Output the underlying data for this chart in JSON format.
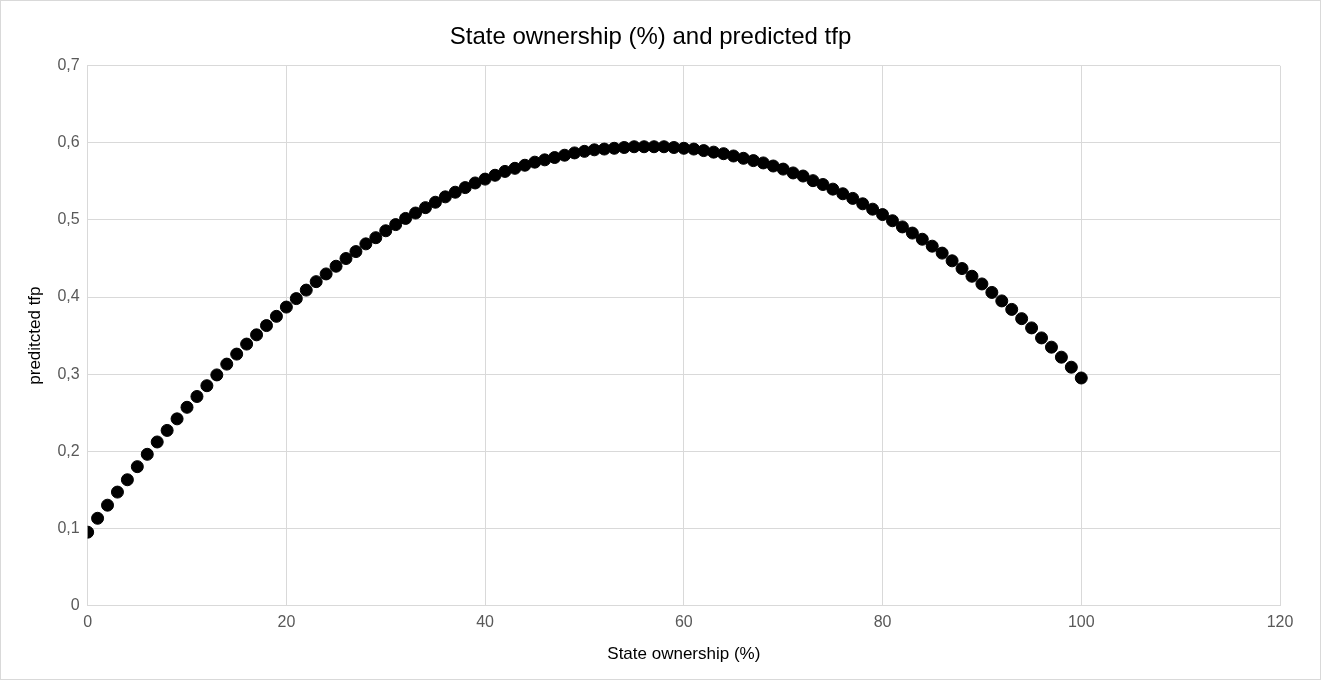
{
  "chart_data": {
    "type": "scatter",
    "title": "State ownership (%) and predicted tfp",
    "xlabel": "State ownership (%)",
    "ylabel": "preditcted tfp",
    "x": [
      0,
      1,
      2,
      3,
      4,
      5,
      6,
      7,
      8,
      9,
      10,
      11,
      12,
      13,
      14,
      15,
      16,
      17,
      18,
      19,
      20,
      21,
      22,
      23,
      24,
      25,
      26,
      27,
      28,
      29,
      30,
      31,
      32,
      33,
      34,
      35,
      36,
      37,
      38,
      39,
      40,
      41,
      42,
      43,
      44,
      45,
      46,
      47,
      48,
      49,
      50,
      51,
      52,
      53,
      54,
      55,
      56,
      57,
      58,
      59,
      60,
      61,
      62,
      63,
      64,
      65,
      66,
      67,
      68,
      69,
      70,
      71,
      72,
      73,
      74,
      75,
      76,
      77,
      78,
      79,
      80,
      81,
      82,
      83,
      84,
      85,
      86,
      87,
      88,
      89,
      90,
      91,
      92,
      93,
      94,
      95,
      96,
      97,
      98,
      99,
      100
    ],
    "series": [
      {
        "color": "#000000",
        "values": [
          0.095,
          0.113,
          0.13,
          0.147,
          0.163,
          0.18,
          0.196,
          0.212,
          0.227,
          0.242,
          0.257,
          0.271,
          0.285,
          0.299,
          0.313,
          0.326,
          0.339,
          0.351,
          0.363,
          0.375,
          0.387,
          0.398,
          0.409,
          0.42,
          0.43,
          0.44,
          0.45,
          0.459,
          0.469,
          0.477,
          0.486,
          0.494,
          0.502,
          0.509,
          0.516,
          0.523,
          0.53,
          0.536,
          0.542,
          0.548,
          0.553,
          0.558,
          0.563,
          0.567,
          0.571,
          0.575,
          0.578,
          0.581,
          0.584,
          0.587,
          0.589,
          0.591,
          0.592,
          0.593,
          0.594,
          0.595,
          0.595,
          0.595,
          0.595,
          0.594,
          0.593,
          0.592,
          0.59,
          0.588,
          0.586,
          0.583,
          0.58,
          0.577,
          0.574,
          0.57,
          0.566,
          0.561,
          0.557,
          0.551,
          0.546,
          0.54,
          0.534,
          0.528,
          0.521,
          0.514,
          0.507,
          0.499,
          0.491,
          0.483,
          0.475,
          0.466,
          0.457,
          0.447,
          0.437,
          0.427,
          0.417,
          0.406,
          0.395,
          0.384,
          0.372,
          0.36,
          0.347,
          0.335,
          0.322,
          0.309,
          0.295
        ]
      }
    ],
    "xlim": [
      0,
      120
    ],
    "xticks": [
      0,
      20,
      40,
      60,
      80,
      100,
      120
    ],
    "ylim": [
      0,
      0.7
    ],
    "yticks": [
      0,
      {
        "value": 0.1,
        "label": "0,1"
      },
      {
        "value": 0.2,
        "label": "0,2"
      },
      {
        "value": 0.3,
        "label": "0,3"
      },
      {
        "value": 0.4,
        "label": "0,4"
      },
      {
        "value": 0.5,
        "label": "0,5"
      },
      {
        "value": 0.6,
        "label": "0,6"
      },
      {
        "value": 0.7,
        "label": "0,7"
      }
    ],
    "grid": true,
    "legend": false,
    "marker": "circle"
  }
}
